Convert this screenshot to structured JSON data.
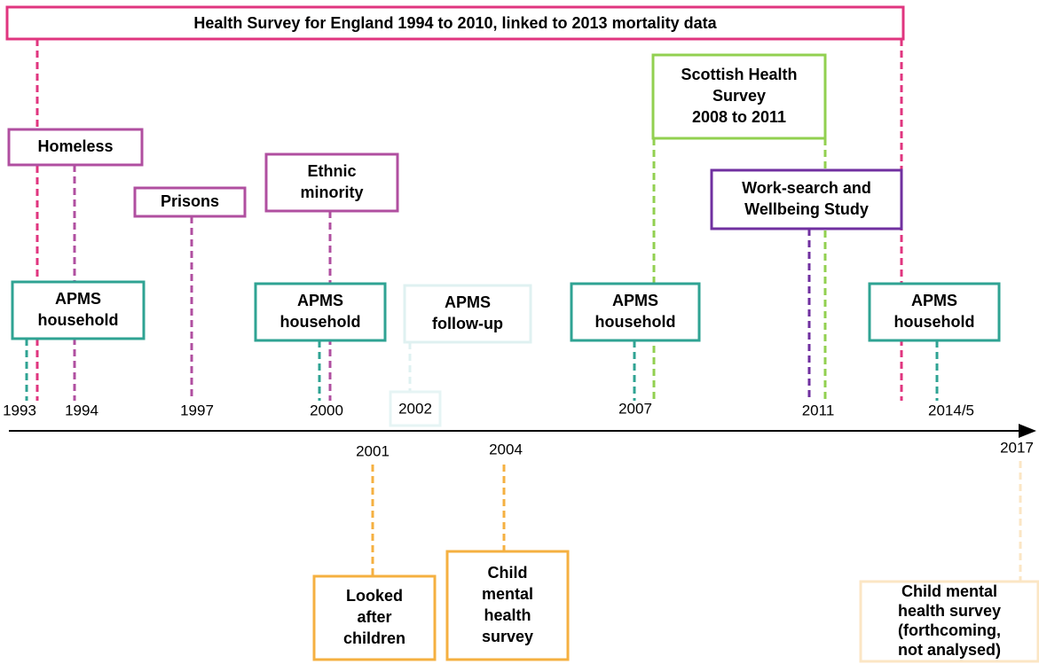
{
  "header": {
    "title": "Health Survey for England 1994 to 2010, linked to 2013 mortality data"
  },
  "surveys": [
    {
      "lines": [
        "Homeless"
      ]
    },
    {
      "lines": [
        "Prisons"
      ]
    },
    {
      "lines": [
        "Ethnic",
        "minority"
      ]
    },
    {
      "lines": [
        "Scottish Health",
        "Survey",
        "2008 to 2011"
      ]
    },
    {
      "lines": [
        "Work-search and",
        "Wellbeing Study"
      ]
    },
    {
      "lines": [
        "APMS",
        "household"
      ]
    },
    {
      "lines": [
        "APMS",
        "household"
      ]
    },
    {
      "lines": [
        "APMS",
        "follow-up"
      ]
    },
    {
      "lines": [
        "APMS",
        "household"
      ]
    },
    {
      "lines": [
        "APMS",
        "household"
      ]
    },
    {
      "lines": [
        "Looked",
        "after",
        "children"
      ]
    },
    {
      "lines": [
        "Child",
        "mental",
        "health",
        "survey"
      ]
    },
    {
      "lines": [
        "Child mental",
        "health survey",
        "(forthcoming,",
        "not analysed)"
      ]
    }
  ],
  "years": [
    "1993",
    "1994",
    "1997",
    "2000",
    "2002",
    "2007",
    "2011",
    "2014/5",
    "2001",
    "2004",
    "2017"
  ]
}
